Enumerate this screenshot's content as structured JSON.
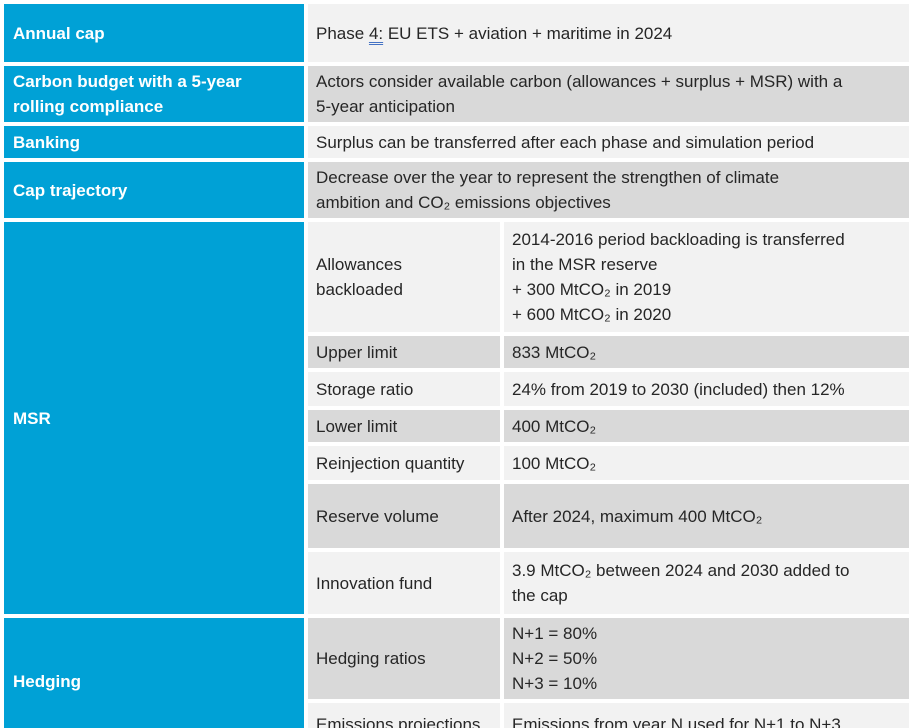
{
  "colors": {
    "accent": "#00a1d6",
    "row_dark": "#d9d9d9",
    "row_light": "#f2f2f2",
    "border": "#ffffff",
    "text": "#262626",
    "header_text": "#ffffff",
    "underline": "#4472c4"
  },
  "rows": {
    "annual_cap": {
      "header": "Annual cap",
      "phase_prefix": "Phase ",
      "phase_num": "4:",
      "phase_rest": " EU ETS + aviation + maritime in 2024"
    },
    "carbon_budget": {
      "header": "Carbon budget with a 5-year\nrolling compliance",
      "value": "Actors consider available carbon (allowances + surplus + MSR) with a\n5-year anticipation"
    },
    "banking": {
      "header": "Banking",
      "value": "Surplus can be transferred after each phase and simulation period"
    },
    "cap_trajectory": {
      "header": "Cap trajectory",
      "value": "Decrease over the year to represent the strengthen of climate\nambition and CO₂ emissions objectives"
    },
    "msr": {
      "header": "MSR",
      "sub_rows": [
        {
          "label": "Allowances\nbackloaded",
          "value": "2014-2016 period backloading is transferred\nin the MSR reserve\n+ 300 MtCO₂ in 2019\n+ 600 MtCO₂ in 2020"
        },
        {
          "label": "Upper limit",
          "value": "833 MtCO₂"
        },
        {
          "label": "Storage ratio",
          "value": "24% from 2019 to 2030 (included) then 12%"
        },
        {
          "label": "Lower limit",
          "value": "400 MtCO₂"
        },
        {
          "label": "Reinjection quantity",
          "value": "100 MtCO₂"
        },
        {
          "label": "Reserve volume",
          "value": "After 2024, maximum 400 MtCO₂"
        },
        {
          "label": "Innovation fund",
          "value": "3.9 MtCO₂ between 2024 and 2030 added to\nthe cap"
        }
      ]
    },
    "hedging": {
      "header": "Hedging",
      "sub_rows": [
        {
          "label": "Hedging ratios",
          "value": "N+1 = 80%\nN+2 = 50%\nN+3 = 10%"
        },
        {
          "label": "Emissions projections",
          "value": "Emissions from year N used for N+1 to N+3"
        }
      ]
    }
  }
}
